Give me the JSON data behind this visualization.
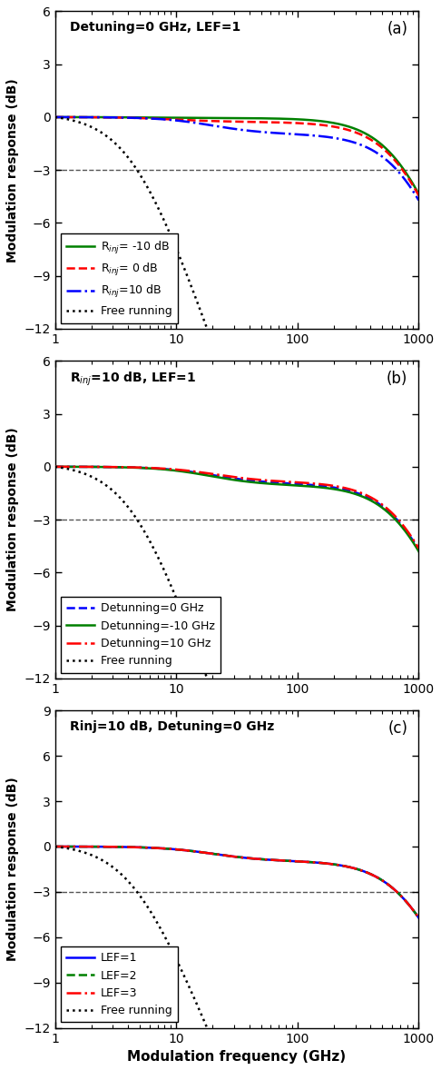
{
  "panels": [
    {
      "label": "(a)",
      "title": "Detuning=0 GHz, LEF=1",
      "ylim": [
        -12,
        6
      ],
      "yticks": [
        -12,
        -9,
        -6,
        -3,
        0,
        3,
        6
      ],
      "curves": [
        {
          "label": "R$_{inj}$= -10 dB",
          "color": "#008000",
          "ls": "solid",
          "lw": 1.8,
          "Rinj_dB": -10,
          "det": 0,
          "LEF": 1
        },
        {
          "label": "R$_{inj}$= 0 dB",
          "color": "#ff0000",
          "ls": "dashed",
          "lw": 1.8,
          "Rinj_dB": 0,
          "det": 0,
          "LEF": 1
        },
        {
          "label": "R$_{inj}$=10 dB",
          "color": "#0000ff",
          "ls": "dashdot",
          "lw": 1.8,
          "Rinj_dB": 10,
          "det": 0,
          "LEF": 1
        },
        {
          "label": "Free running",
          "color": "#000000",
          "ls": "dotted",
          "lw": 1.8,
          "Rinj_dB": null,
          "det": 0,
          "LEF": 1
        }
      ]
    },
    {
      "label": "(b)",
      "title": "R$_{inj}$=10 dB, LEF=1",
      "ylim": [
        -12,
        6
      ],
      "yticks": [
        -12,
        -9,
        -6,
        -3,
        0,
        3,
        6
      ],
      "curves": [
        {
          "label": "Detunning=0 GHz",
          "color": "#0000ff",
          "ls": "dashed",
          "lw": 1.8,
          "Rinj_dB": 10,
          "det": 0,
          "LEF": 1
        },
        {
          "label": "Detunning=-10 GHz",
          "color": "#008000",
          "ls": "solid",
          "lw": 1.8,
          "Rinj_dB": 10,
          "det": -10,
          "LEF": 1
        },
        {
          "label": "Detunning=10 GHz",
          "color": "#ff0000",
          "ls": "dashdot",
          "lw": 1.8,
          "Rinj_dB": 10,
          "det": 10,
          "LEF": 1
        },
        {
          "label": "Free running",
          "color": "#000000",
          "ls": "dotted",
          "lw": 1.8,
          "Rinj_dB": null,
          "det": 0,
          "LEF": 1
        }
      ]
    },
    {
      "label": "(c)",
      "title": "Rinj=10 dB, Detuning=0 GHz",
      "ylim": [
        -12,
        9
      ],
      "yticks": [
        -12,
        -9,
        -6,
        -3,
        0,
        3,
        6,
        9
      ],
      "curves": [
        {
          "label": "LEF=1",
          "color": "#0000ff",
          "ls": "solid",
          "lw": 1.8,
          "Rinj_dB": 10,
          "det": 0,
          "LEF": 1
        },
        {
          "label": "LEF=2",
          "color": "#008000",
          "ls": "dashed",
          "lw": 1.8,
          "Rinj_dB": 10,
          "det": 0,
          "LEF": 2
        },
        {
          "label": "LEF=3",
          "color": "#ff0000",
          "ls": "dashdot",
          "lw": 1.8,
          "Rinj_dB": 10,
          "det": 0,
          "LEF": 3
        },
        {
          "label": "Free running",
          "color": "#000000",
          "ls": "dotted",
          "lw": 1.8,
          "Rinj_dB": null,
          "det": 0,
          "LEF": 1
        }
      ]
    }
  ],
  "xlabel": "Modulation frequency (GHz)",
  "ylabel": "Modulation response (dB)",
  "background_color": "#ffffff"
}
